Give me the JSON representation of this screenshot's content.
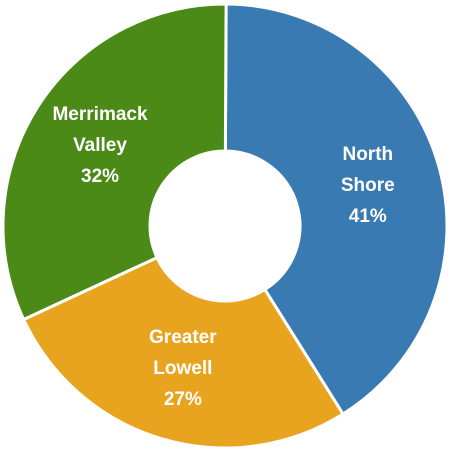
{
  "chart_data": {
    "type": "donut",
    "categories": [
      "North Shore",
      "Greater Lowell",
      "Merrimack Valley"
    ],
    "values": [
      41,
      27,
      32
    ],
    "value_labels": [
      "41%",
      "27%",
      "32%"
    ],
    "colors": [
      "#3a7ab2",
      "#e8a41e",
      "#4b8a17"
    ]
  }
}
